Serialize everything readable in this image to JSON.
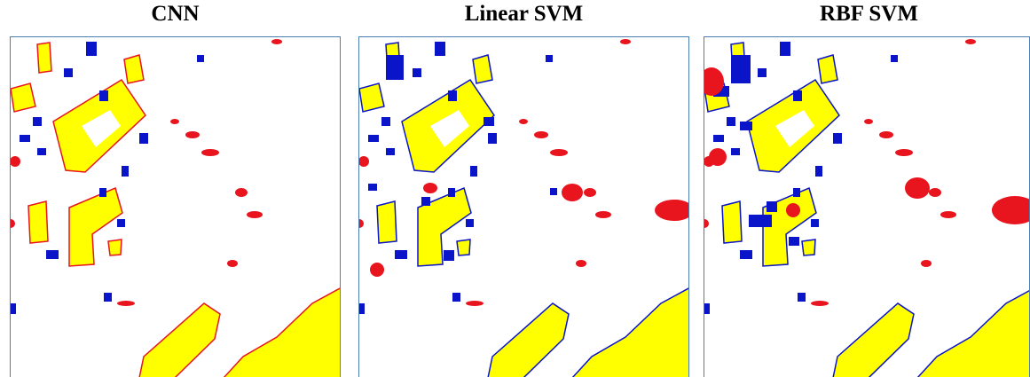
{
  "panels": [
    {
      "title": "CNN"
    },
    {
      "title": "Linear SVM"
    },
    {
      "title": "RBF SVM"
    }
  ]
}
